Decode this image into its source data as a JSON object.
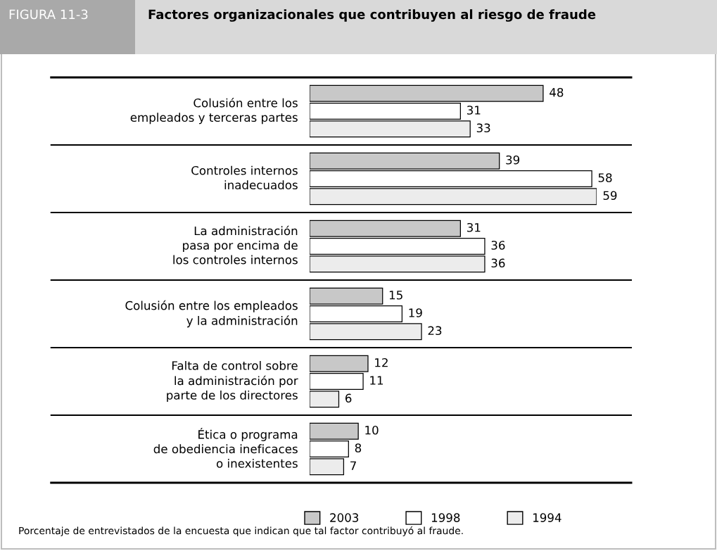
{
  "chart_data": {
    "type": "bar",
    "orientation": "horizontal",
    "title": "Factores organizacionales que contribuyen al riesgo de fraude",
    "categories": [
      "Colusión entre los\nempleados y terceras partes",
      "Controles internos\ninadecuados",
      "La administración\npasa por encima de\nlos controles internos",
      "Colusión entre los empleados\ny la administración",
      "Falta de control sobre\nla administración por\nparte de los directores",
      "Ética o programa\nde obediencia ineficaces\no inexistentes"
    ],
    "series": [
      {
        "name": "2003",
        "color": "#c8c8c8",
        "values": [
          48,
          39,
          31,
          15,
          12,
          10
        ]
      },
      {
        "name": "1998",
        "color": "#ffffff",
        "values": [
          31,
          58,
          36,
          19,
          11,
          8
        ]
      },
      {
        "name": "1994",
        "color": "#ececec",
        "values": [
          33,
          59,
          36,
          23,
          6,
          7
        ]
      }
    ],
    "data_labels": true,
    "legend": "bottom left",
    "annotations": [
      "FIGURA 11-3",
      "Porcentaje de entrevistados de la encuesta que indican que tal factor contribuyó al fraude."
    ]
  }
}
